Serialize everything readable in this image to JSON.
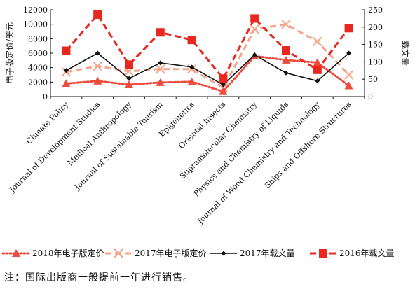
{
  "chart_data": {
    "type": "line",
    "categories": [
      "Climate Policy",
      "Journal of Development Studies",
      "Medical Anthropology",
      "Journal of Sustainable Tourism",
      "Epigenetics",
      "Oriental Insects",
      "Supramolecular Chemistry",
      "Physics and Chemistry of Liquids",
      "Journal of Wood Chemistry and Technology",
      "Ships and Offshore Structures"
    ],
    "y_left": {
      "label": "电子版定价/美元",
      "range": [
        0,
        12000
      ],
      "ticks": [
        0,
        2000,
        4000,
        6000,
        8000,
        10000,
        12000
      ]
    },
    "y_right": {
      "label": "载文量",
      "range": [
        0,
        250
      ],
      "ticks": [
        0,
        50,
        100,
        150,
        200,
        250
      ]
    },
    "series": [
      {
        "name": "2018年电子版定价",
        "axis": "left",
        "color": "#ee4a3c",
        "style": "dotted",
        "marker": "triangle",
        "values": [
          1800,
          2150,
          1650,
          1950,
          2050,
          700,
          5600,
          5050,
          4700,
          1500
        ]
      },
      {
        "name": "2017年电子版定价",
        "axis": "left",
        "color": "#f4a58a",
        "style": "dashed",
        "marker": "x",
        "values": [
          3400,
          4200,
          3500,
          3800,
          3800,
          1200,
          9300,
          10000,
          7600,
          3000
        ]
      },
      {
        "name": "2017年载文量",
        "axis": "right",
        "color": "#111111",
        "style": "solid",
        "marker": "diamond",
        "values": [
          75,
          125,
          52,
          97,
          85,
          34,
          120,
          68,
          45,
          125
        ]
      },
      {
        "name": "2016年载文量",
        "axis": "right",
        "color": "#e8281e",
        "style": "dashed",
        "marker": "square",
        "values": [
          132,
          236,
          92,
          185,
          163,
          52,
          225,
          133,
          77,
          197
        ]
      }
    ],
    "grid": false,
    "legend": "bottom"
  },
  "note": "注：国际出版商一般提前一年进行销售。"
}
